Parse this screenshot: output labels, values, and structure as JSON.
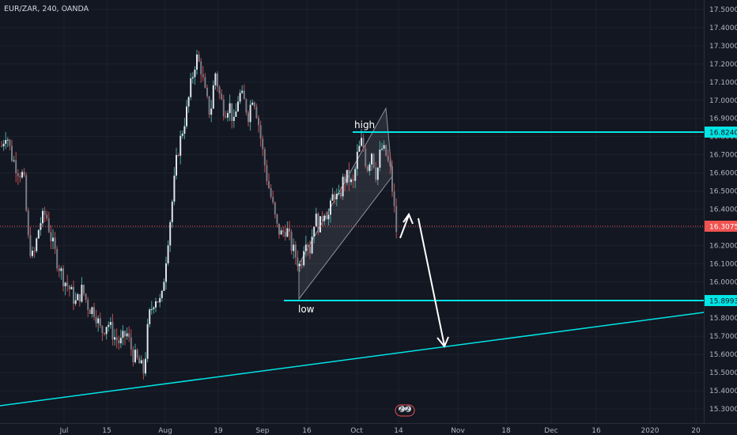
{
  "chart_data": {
    "type": "candlestick",
    "title": "EUR/ZAR, 240, OANDA",
    "y_ticks": [
      "17.50000",
      "17.40000",
      "17.30000",
      "17.20000",
      "17.10000",
      "17.00000",
      "16.90000",
      "16.80000",
      "16.70000",
      "16.60000",
      "16.50000",
      "16.40000",
      "16.30000",
      "16.20000",
      "16.10000",
      "16.00000",
      "15.90000",
      "15.80000",
      "15.70000",
      "15.60000",
      "15.50000",
      "15.40000",
      "15.30000"
    ],
    "ylim": [
      15.27,
      17.52
    ],
    "x_ticks": [
      "Jul",
      "15",
      "Aug",
      "19",
      "Sep",
      "16",
      "Oct",
      "14",
      "Nov",
      "18",
      "Dec",
      "16",
      "2020",
      "20"
    ],
    "current_price": {
      "label": "16.30752",
      "value": 16.30752,
      "color": "#ef5350"
    },
    "levels": [
      {
        "label": "16.82406",
        "value": 16.82406,
        "color": "#00e5e5"
      },
      {
        "label": "15.89938",
        "value": 15.89938,
        "color": "#00e5e5"
      }
    ],
    "annotations": [
      {
        "text": "high"
      },
      {
        "text": "low"
      }
    ],
    "event_badge": "2 2",
    "series": [
      {
        "name": "EUR/ZAR price (approx.)",
        "points": [
          [
            0,
            16.72
          ],
          [
            8,
            16.83
          ],
          [
            14,
            16.7
          ],
          [
            22,
            16.62
          ],
          [
            30,
            16.58
          ],
          [
            36,
            16.22
          ],
          [
            42,
            16.12
          ],
          [
            50,
            16.32
          ],
          [
            58,
            16.38
          ],
          [
            64,
            16.25
          ],
          [
            72,
            16.12
          ],
          [
            80,
            16.02
          ],
          [
            88,
            15.96
          ],
          [
            96,
            15.88
          ],
          [
            104,
            15.96
          ],
          [
            112,
            15.86
          ],
          [
            120,
            15.84
          ],
          [
            128,
            15.72
          ],
          [
            136,
            15.78
          ],
          [
            144,
            15.7
          ],
          [
            152,
            15.66
          ],
          [
            160,
            15.72
          ],
          [
            168,
            15.6
          ],
          [
            176,
            15.55
          ],
          [
            182,
            15.5
          ],
          [
            188,
            15.8
          ],
          [
            196,
            15.92
          ],
          [
            204,
            15.88
          ],
          [
            212,
            16.22
          ],
          [
            218,
            16.45
          ],
          [
            224,
            16.7
          ],
          [
            230,
            16.82
          ],
          [
            236,
            16.94
          ],
          [
            242,
            17.1
          ],
          [
            248,
            17.24
          ],
          [
            254,
            17.18
          ],
          [
            260,
            17.02
          ],
          [
            266,
            16.92
          ],
          [
            272,
            17.16
          ],
          [
            278,
            17.02
          ],
          [
            284,
            16.94
          ],
          [
            290,
            16.98
          ],
          [
            296,
            16.86
          ],
          [
            302,
            17.04
          ],
          [
            308,
            17.0
          ],
          [
            314,
            16.92
          ],
          [
            320,
            17.04
          ],
          [
            326,
            16.9
          ],
          [
            332,
            16.72
          ],
          [
            338,
            16.56
          ],
          [
            344,
            16.44
          ],
          [
            350,
            16.3
          ],
          [
            356,
            16.26
          ],
          [
            362,
            16.3
          ],
          [
            368,
            16.2
          ],
          [
            374,
            16.14
          ],
          [
            380,
            16.08
          ],
          [
            386,
            16.26
          ],
          [
            392,
            16.18
          ],
          [
            398,
            16.36
          ],
          [
            404,
            16.3
          ],
          [
            410,
            16.4
          ],
          [
            416,
            16.36
          ],
          [
            422,
            16.5
          ],
          [
            428,
            16.44
          ],
          [
            434,
            16.56
          ],
          [
            440,
            16.58
          ],
          [
            446,
            16.52
          ],
          [
            452,
            16.7
          ],
          [
            458,
            16.78
          ],
          [
            464,
            16.62
          ],
          [
            470,
            16.72
          ],
          [
            476,
            16.58
          ],
          [
            482,
            16.74
          ],
          [
            488,
            16.7
          ],
          [
            494,
            16.6
          ],
          [
            498,
            16.42
          ],
          [
            502,
            16.25
          ]
        ]
      }
    ]
  }
}
